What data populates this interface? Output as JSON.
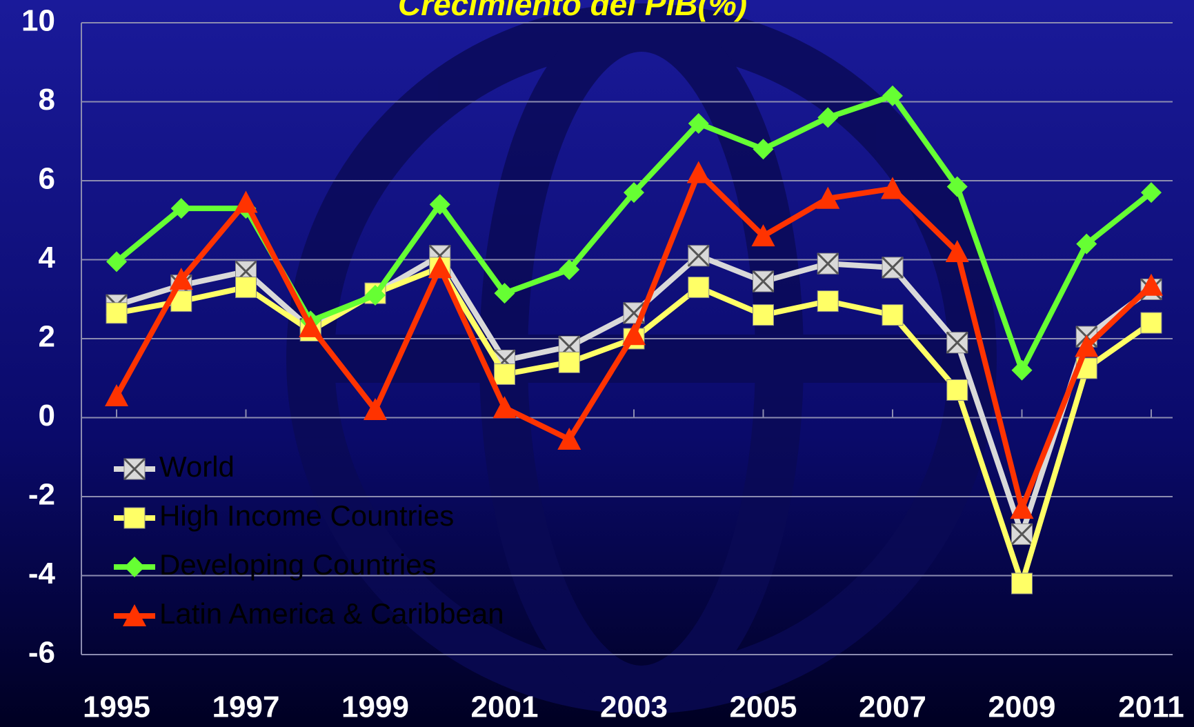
{
  "chart_data": {
    "type": "line",
    "title": "Crecimiento del PIB(%)",
    "x": [
      1995,
      1996,
      1997,
      1998,
      1999,
      2000,
      2001,
      2002,
      2003,
      2004,
      2005,
      2006,
      2007,
      2008,
      2009,
      2010,
      2011
    ],
    "xlim": [
      1995,
      2011
    ],
    "xticks": [
      1995,
      1997,
      1999,
      2001,
      2003,
      2005,
      2007,
      2009,
      2011
    ],
    "ylim": [
      -6,
      10
    ],
    "yticks": [
      -6,
      -4,
      -2,
      0,
      2,
      4,
      6,
      8,
      10
    ],
    "grid": true,
    "legend": "lower left",
    "series": [
      {
        "name": "World",
        "color": "#d9d9d9",
        "marker": "x-square",
        "values": [
          2.85,
          3.35,
          3.7,
          2.25,
          3.15,
          4.1,
          1.45,
          1.8,
          2.65,
          4.1,
          3.45,
          3.9,
          3.8,
          1.9,
          -2.95,
          2.05,
          3.25
        ]
      },
      {
        "name": "High Income Countries",
        "color": "#ffff66",
        "marker": "square",
        "values": [
          2.65,
          2.95,
          3.3,
          2.2,
          3.15,
          3.8,
          1.1,
          1.4,
          2.0,
          3.3,
          2.6,
          2.95,
          2.6,
          0.7,
          -4.2,
          1.25,
          2.4
        ]
      },
      {
        "name": "Developing Countries",
        "color": "#66ff33",
        "marker": "diamond",
        "values": [
          3.95,
          5.3,
          5.3,
          2.45,
          3.1,
          5.4,
          3.15,
          3.75,
          5.7,
          7.45,
          6.8,
          7.6,
          8.15,
          5.85,
          1.2,
          4.4,
          5.7
        ]
      },
      {
        "name": "Latin America & Caribbean",
        "color": "#ff3300",
        "marker": "triangle",
        "values": [
          0.55,
          3.5,
          5.45,
          2.3,
          0.2,
          3.8,
          0.25,
          -0.55,
          2.1,
          6.2,
          4.6,
          5.55,
          5.8,
          4.2,
          -2.3,
          1.8,
          3.35
        ]
      }
    ]
  }
}
